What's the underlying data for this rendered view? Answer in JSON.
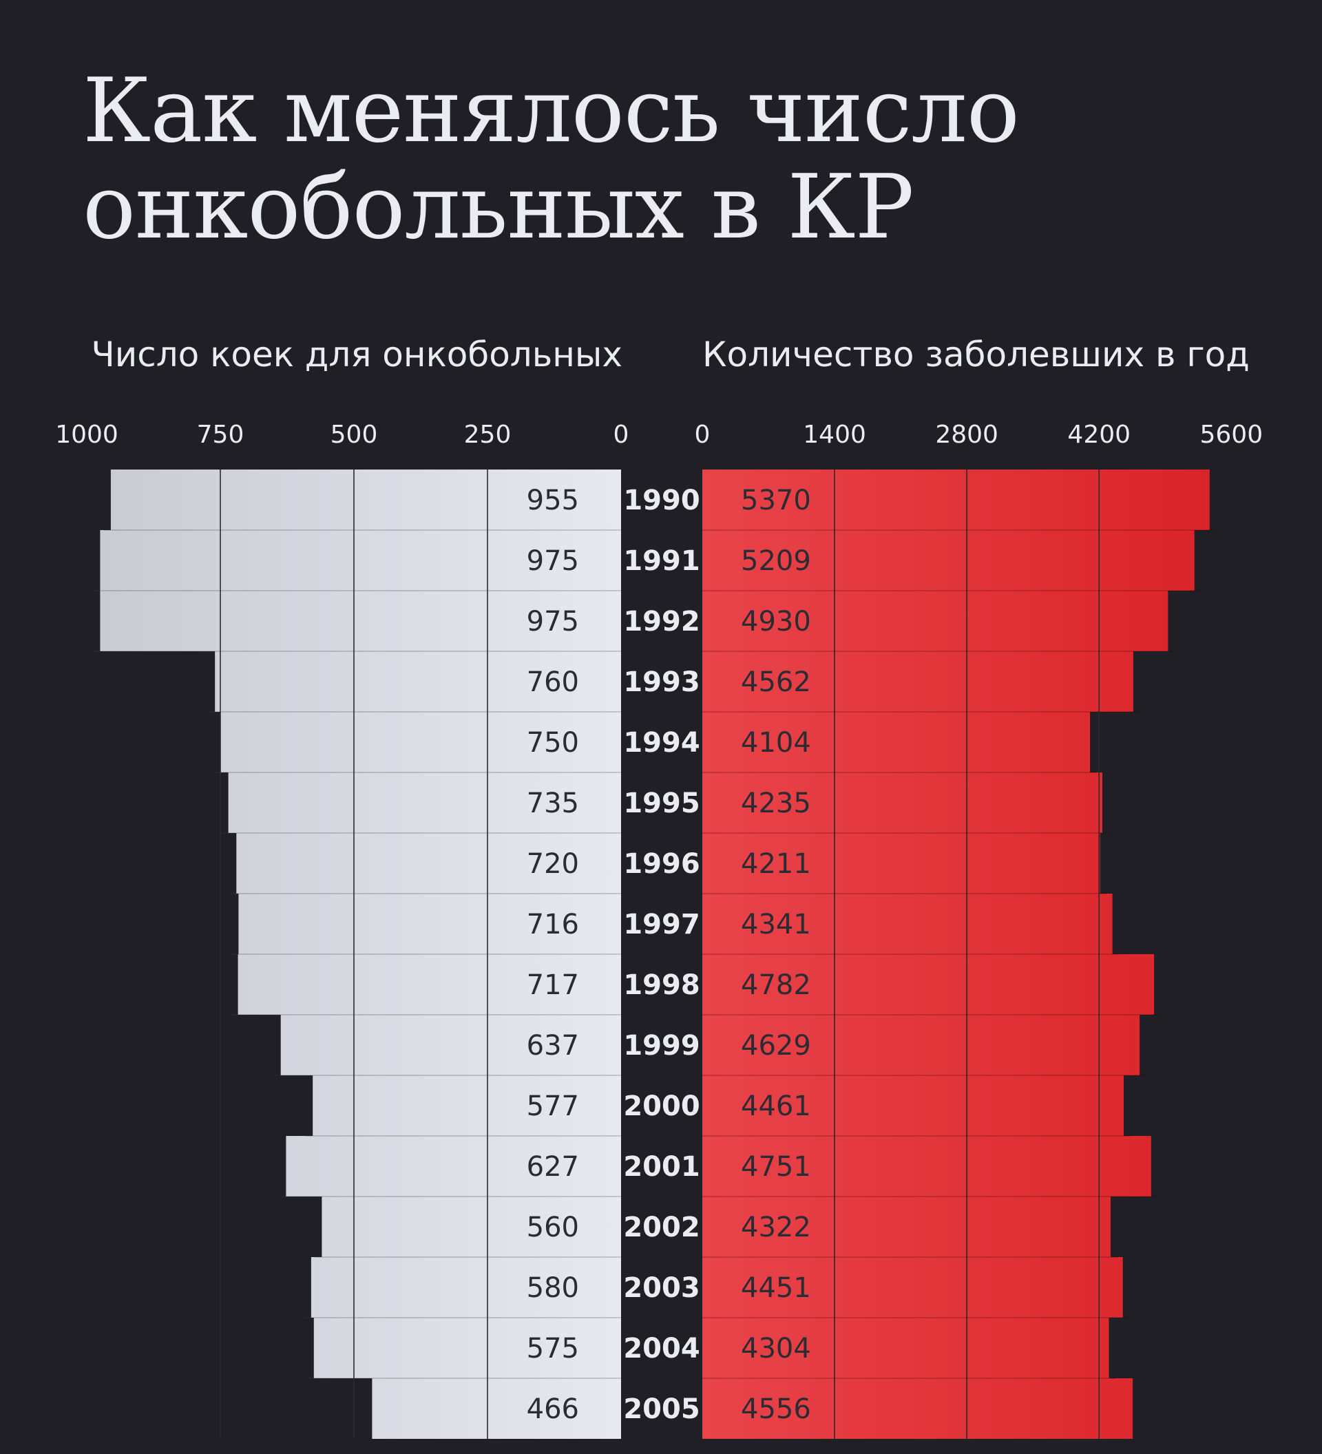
{
  "title_lines": [
    "Как менялось число",
    "онкобольных в КР"
  ],
  "chart_data": [
    {
      "type": "bar",
      "orientation": "horizontal",
      "direction": "right-to-left",
      "title": "Число коек для онкобольных",
      "categories": [
        "1990",
        "1991",
        "1992",
        "1993",
        "1994",
        "1995",
        "1996",
        "1997",
        "1998",
        "1999",
        "2000",
        "2001",
        "2002",
        "2003",
        "2004",
        "2005"
      ],
      "values": [
        955,
        975,
        975,
        760,
        750,
        735,
        720,
        716,
        717,
        637,
        577,
        627,
        560,
        580,
        575,
        466
      ],
      "ticks": [
        "1000",
        "750",
        "500",
        "250",
        "0"
      ],
      "xlim": [
        0,
        1000
      ],
      "colors": [
        "#c6c7cf",
        "#e8e8f1"
      ]
    },
    {
      "type": "bar",
      "orientation": "horizontal",
      "direction": "left-to-right",
      "title": "Количество заболевших в год",
      "categories": [
        "1990",
        "1991",
        "1992",
        "1993",
        "1994",
        "1995",
        "1996",
        "1997",
        "1998",
        "1999",
        "2000",
        "2001",
        "2002",
        "2003",
        "2004",
        "2005"
      ],
      "values": [
        5370,
        5209,
        4930,
        4562,
        4104,
        4235,
        4211,
        4341,
        4782,
        4629,
        4461,
        4751,
        4322,
        4451,
        4304,
        4556
      ],
      "ticks": [
        "0",
        "1400",
        "2800",
        "4200",
        "5600"
      ],
      "xlim": [
        0,
        5600
      ],
      "colors": [
        "#e8444a",
        "#d92226"
      ]
    }
  ],
  "colors": {
    "background": "#1f1f25",
    "text_light": "#ebebf2",
    "label_dark": "#2b2b33",
    "gridline": "#2a2a30"
  }
}
